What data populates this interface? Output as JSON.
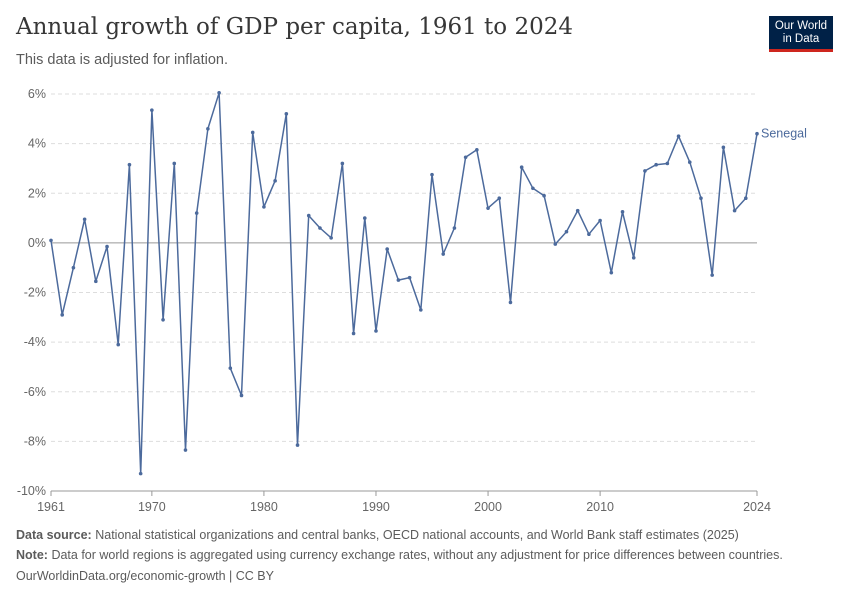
{
  "header": {
    "title": "Annual growth of GDP per capita, 1961 to 2024",
    "subtitle": "This data is adjusted for inflation.",
    "logo_line1": "Our World",
    "logo_line2": "in Data"
  },
  "footer": {
    "source_label": "Data source:",
    "source_text": "National statistical organizations and central banks, OECD national accounts, and World Bank staff estimates (2025)",
    "note_label": "Note:",
    "note_text": "Data for world regions is aggregated using currency exchange rates, without any adjustment for price differences between countries.",
    "url_text": "OurWorldinData.org/economic-growth | CC BY"
  },
  "colors": {
    "series": "#4c6a9c",
    "grid": "#dddddd",
    "zero_line": "#999999",
    "axis_text": "#666666"
  },
  "chart_data": {
    "type": "line",
    "title": "Annual growth of GDP per capita, 1961 to 2024",
    "subtitle": "This data is adjusted for inflation.",
    "xlim": [
      1961,
      2024
    ],
    "ylim": [
      -10,
      6
    ],
    "y_ticks": [
      6,
      4,
      2,
      0,
      -2,
      -4,
      -6,
      -8,
      -10
    ],
    "y_tick_labels": [
      "6%",
      "4%",
      "2%",
      "0%",
      "-2%",
      "-4%",
      "-6%",
      "-8%",
      "-10%"
    ],
    "x_ticks": [
      1961,
      1970,
      1980,
      1990,
      2000,
      2010,
      2024
    ],
    "x_tick_labels": [
      "1961",
      "1970",
      "1980",
      "1990",
      "2000",
      "2010",
      "2024"
    ],
    "grid": "horizontal dashed",
    "legend": "end-of-line label",
    "series": [
      {
        "name": "Senegal",
        "x": [
          1961,
          1962,
          1963,
          1964,
          1965,
          1966,
          1967,
          1968,
          1969,
          1970,
          1971,
          1972,
          1973,
          1974,
          1975,
          1976,
          1977,
          1978,
          1979,
          1980,
          1981,
          1982,
          1983,
          1984,
          1985,
          1986,
          1987,
          1988,
          1989,
          1990,
          1991,
          1992,
          1993,
          1994,
          1995,
          1996,
          1997,
          1998,
          1999,
          2000,
          2001,
          2002,
          2003,
          2004,
          2005,
          2006,
          2007,
          2008,
          2009,
          2010,
          2011,
          2012,
          2013,
          2014,
          2015,
          2016,
          2017,
          2018,
          2019,
          2020,
          2021,
          2022,
          2023,
          2024
        ],
        "values": [
          0.1,
          -2.9,
          -1.0,
          0.95,
          -1.55,
          -0.15,
          -4.1,
          3.15,
          -9.3,
          5.35,
          -3.1,
          3.2,
          -8.35,
          1.2,
          4.6,
          6.05,
          -5.05,
          -6.15,
          4.45,
          1.45,
          2.5,
          5.2,
          -8.15,
          1.1,
          0.6,
          0.2,
          3.2,
          -3.65,
          1.0,
          -3.55,
          -0.25,
          -1.5,
          -1.4,
          -2.7,
          2.75,
          -0.45,
          0.6,
          3.45,
          3.75,
          1.4,
          1.8,
          -2.4,
          3.05,
          2.2,
          1.9,
          -0.05,
          0.45,
          1.3,
          0.35,
          0.9,
          -1.2,
          1.25,
          -0.6,
          2.9,
          3.15,
          3.2,
          4.3,
          3.25,
          1.8,
          -1.3,
          3.85,
          1.3,
          1.8,
          4.4
        ]
      }
    ]
  }
}
